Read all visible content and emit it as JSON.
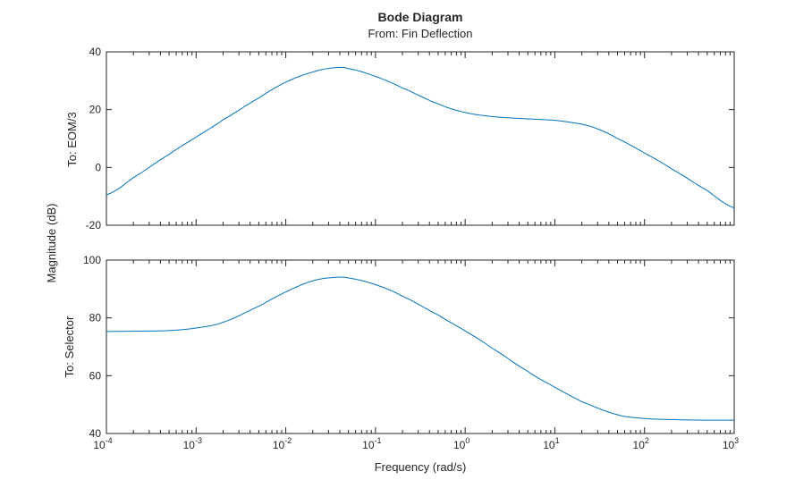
{
  "chart_data": {
    "type": "line",
    "title": "Bode Diagram",
    "subtitle": "From: Fin Deflection",
    "xlabel": "Frequency (rad/s)",
    "ylabel": "Magnitude (dB)",
    "xscale": "log",
    "xlim": [
      0.0001,
      1000
    ],
    "x_ticks": [
      {
        "base": "10",
        "exp": "-4"
      },
      {
        "base": "10",
        "exp": "-3"
      },
      {
        "base": "10",
        "exp": "-2"
      },
      {
        "base": "10",
        "exp": "-1"
      },
      {
        "base": "10",
        "exp": "0"
      },
      {
        "base": "10",
        "exp": "1"
      },
      {
        "base": "10",
        "exp": "2"
      },
      {
        "base": "10",
        "exp": "3"
      }
    ],
    "line_color": "#0072BD",
    "grid": false,
    "panels": [
      {
        "name": "To: EOM/3",
        "ylim": [
          -20,
          40
        ],
        "yticks": [
          "-20",
          "0",
          "20",
          "40"
        ],
        "series": {
          "x": [
            0.0001,
            0.0002,
            0.0005,
            0.001,
            0.002,
            0.005,
            0.01,
            0.02,
            0.035,
            0.05,
            0.1,
            0.2,
            0.5,
            1,
            2,
            5,
            10,
            20,
            30,
            50,
            100,
            200,
            500,
            1000
          ],
          "y": [
            -9.5,
            -3.5,
            4.5,
            10.5,
            16.5,
            24.0,
            29.5,
            33.0,
            34.5,
            34.2,
            31.5,
            27.5,
            22.0,
            19.0,
            17.6,
            16.8,
            16.3,
            15.0,
            13.3,
            10.0,
            5.0,
            -0.5,
            -8.0,
            -14.0
          ]
        }
      },
      {
        "name": "To: Selector",
        "ylim": [
          40,
          100
        ],
        "yticks": [
          "40",
          "60",
          "80",
          "100"
        ],
        "series": {
          "x": [
            0.0001,
            0.0002,
            0.0005,
            0.001,
            0.002,
            0.005,
            0.01,
            0.02,
            0.035,
            0.05,
            0.1,
            0.2,
            0.5,
            1,
            2,
            5,
            10,
            20,
            50,
            100,
            200,
            500,
            1000
          ],
          "y": [
            75.3,
            75.4,
            75.6,
            76.5,
            78.5,
            84.0,
            89.0,
            92.8,
            94.0,
            93.8,
            91.5,
            87.5,
            81.0,
            75.5,
            69.5,
            61.5,
            56.0,
            51.0,
            46.5,
            45.2,
            44.8,
            44.6,
            44.6
          ]
        }
      }
    ]
  }
}
